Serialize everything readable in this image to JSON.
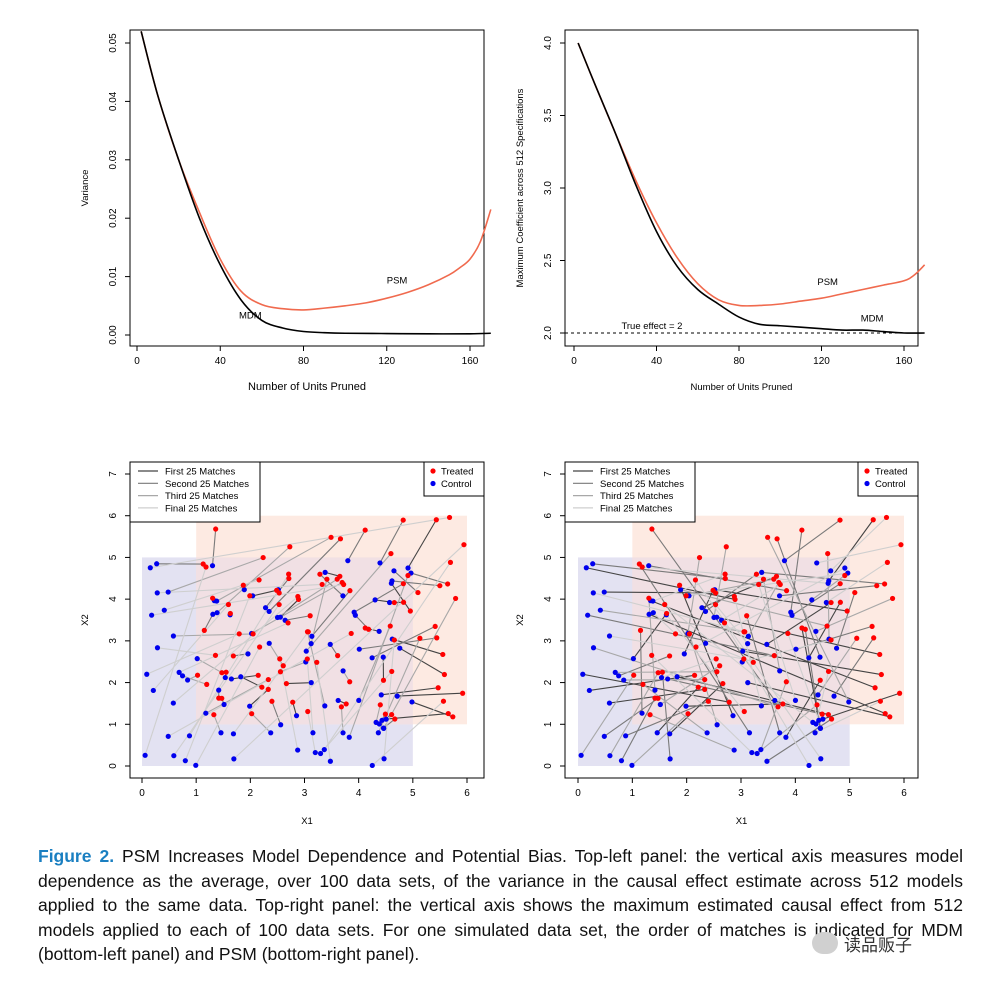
{
  "panels": {
    "top_left": {
      "chart_data": {
        "type": "line",
        "xlabel": "Number of Units Pruned",
        "ylabel": "Variance",
        "xlim": [
          0,
          175
        ],
        "ylim": [
          -0.0015,
          0.0535
        ],
        "xticks": [
          0,
          40,
          80,
          120,
          160
        ],
        "yticks": [
          0.0,
          0.01,
          0.02,
          0.03,
          0.04,
          0.05
        ],
        "ytick_labels": [
          "0.00",
          "0.01",
          "0.02",
          "0.03",
          "0.04",
          "0.05"
        ],
        "series": [
          {
            "name": "PSM",
            "color": "#f06a4e",
            "x": [
              2,
              10,
              20,
              30,
              40,
              50,
              60,
              70,
              80,
              90,
              100,
              110,
              120,
              130,
              140,
              150,
              155,
              160,
              165,
              170
            ],
            "y": [
              0.052,
              0.041,
              0.03,
              0.021,
              0.013,
              0.0075,
              0.0052,
              0.0045,
              0.0043,
              0.0046,
              0.005,
              0.0055,
              0.0063,
              0.0073,
              0.0086,
              0.0103,
              0.0115,
              0.013,
              0.016,
              0.0215
            ]
          },
          {
            "name": "MDM",
            "color": "#000000",
            "x": [
              2,
              10,
              20,
              30,
              40,
              50,
              60,
              70,
              80,
              90,
              100,
              120,
              140,
              160,
              170
            ],
            "y": [
              0.052,
              0.041,
              0.03,
              0.02,
              0.012,
              0.006,
              0.0025,
              0.0012,
              0.0006,
              0.0004,
              0.0003,
              0.00025,
              0.0002,
              0.0002,
              0.0003
            ]
          }
        ],
        "annotations": [
          {
            "text": "PSM",
            "x": 120,
            "y": 0.0088
          },
          {
            "text": "MDM",
            "x": 49,
            "y": 0.0028
          }
        ]
      }
    },
    "top_right": {
      "chart_data": {
        "type": "line",
        "xlabel": "Number of Units Pruned",
        "ylabel": "Maximum Coefficient across 512 Specifications",
        "xlim": [
          -2,
          175
        ],
        "ylim": [
          1.9,
          4.1
        ],
        "xticks": [
          0,
          40,
          80,
          120,
          160
        ],
        "yticks": [
          2.0,
          2.5,
          3.0,
          3.5,
          4.0
        ],
        "ytick_labels": [
          "2.0",
          "2.5",
          "3.0",
          "3.5",
          "4.0"
        ],
        "reference_line": {
          "y": 2.0,
          "label": "True effect = 2"
        },
        "series": [
          {
            "name": "PSM",
            "color": "#f06a4e",
            "x": [
              2,
              10,
              20,
              30,
              40,
              50,
              60,
              70,
              80,
              90,
              100,
              110,
              120,
              130,
              140,
              150,
              160,
              165,
              170
            ],
            "y": [
              4.0,
              3.72,
              3.38,
              3.05,
              2.76,
              2.52,
              2.34,
              2.23,
              2.19,
              2.19,
              2.2,
              2.22,
              2.24,
              2.27,
              2.3,
              2.33,
              2.36,
              2.4,
              2.47
            ]
          },
          {
            "name": "MDM",
            "color": "#000000",
            "x": [
              2,
              10,
              20,
              30,
              40,
              50,
              60,
              70,
              80,
              90,
              100,
              110,
              120,
              130,
              140,
              150,
              160,
              170
            ],
            "y": [
              4.0,
              3.72,
              3.38,
              3.02,
              2.7,
              2.46,
              2.3,
              2.2,
              2.11,
              2.06,
              2.05,
              2.04,
              2.03,
              2.02,
              2.02,
              2.01,
              2.0,
              2.0
            ]
          }
        ],
        "annotations": [
          {
            "text": "PSM",
            "x": 118,
            "y": 2.33
          },
          {
            "text": "MDM",
            "x": 139,
            "y": 2.08
          }
        ]
      }
    },
    "bottom_left": {
      "chart_data": {
        "type": "scatter",
        "xlabel": "X1",
        "ylabel": "X2",
        "xlim": [
          -0.2,
          6.2
        ],
        "ylim": [
          -0.2,
          7.2
        ],
        "xticks": [
          0,
          1,
          2,
          3,
          4,
          5,
          6
        ],
        "yticks": [
          0,
          1,
          2,
          3,
          4,
          5,
          6,
          7
        ],
        "control_region": {
          "x": [
            0,
            5
          ],
          "y": [
            0,
            5
          ],
          "color": "#e3e2f2"
        },
        "treated_region": {
          "x": [
            1,
            6
          ],
          "y": [
            1,
            6
          ],
          "color": "#fde6dd"
        },
        "legend_lines": [
          "First 25 Matches",
          "Second 25 Matches",
          "Third 25 Matches",
          "Final 25 Matches"
        ],
        "legend_points": [
          {
            "name": "Treated",
            "color": "#ff0000"
          },
          {
            "name": "Control",
            "color": "#0000ee"
          }
        ],
        "matching": "MDM"
      }
    },
    "bottom_right": {
      "chart_data": {
        "type": "scatter",
        "xlabel": "X1",
        "ylabel": "X2",
        "xlim": [
          -0.2,
          6.2
        ],
        "ylim": [
          -0.2,
          7.2
        ],
        "xticks": [
          0,
          1,
          2,
          3,
          4,
          5,
          6
        ],
        "yticks": [
          0,
          1,
          2,
          3,
          4,
          5,
          6,
          7
        ],
        "control_region": {
          "x": [
            0,
            5
          ],
          "y": [
            0,
            5
          ],
          "color": "#e3e2f2"
        },
        "treated_region": {
          "x": [
            1,
            6
          ],
          "y": [
            1,
            6
          ],
          "color": "#fde6dd"
        },
        "legend_lines": [
          "First 25 Matches",
          "Second 25 Matches",
          "Third 25 Matches",
          "Final 25 Matches"
        ],
        "legend_points": [
          {
            "name": "Treated",
            "color": "#ff0000"
          },
          {
            "name": "Control",
            "color": "#0000ee"
          }
        ],
        "matching": "PSM"
      }
    }
  },
  "caption": {
    "figure_label": "Figure 2.",
    "text": " PSM Increases Model Dependence and Potential Bias. Top-left panel: the vertical axis measures model dependence as the average, over 100 data sets, of the variance in the causal effect estimate across 512 models applied to the same data. Top-right panel: the vertical axis shows the maximum estimated causal effect from 512 models applied to each of 100 data sets. For one simulated data set, the order of matches is indicated for MDM (bottom-left panel) and PSM (bottom-right panel)."
  },
  "watermark": {
    "text": "读品贩子"
  }
}
